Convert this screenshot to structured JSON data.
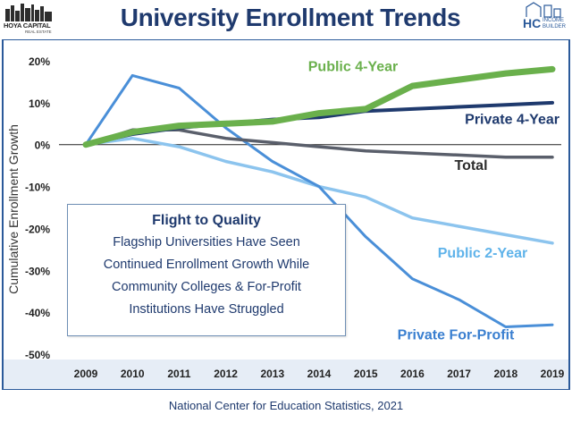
{
  "header": {
    "title": "University Enrollment Trends",
    "logo_left_text": "HOYA CAPITAL",
    "logo_left_sub": "REAL ESTATE",
    "logo_right_text": "HC",
    "logo_right_sub": "INCOME BUILDER"
  },
  "callout": {
    "title": "Flight to Quality",
    "lines": [
      "Flagship Universities Have Seen",
      "Continued Enrollment Growth While",
      "Community Colleges & For-Profit",
      "Institutions Have Struggled"
    ]
  },
  "footer": {
    "source": "National Center for Education Statistics, 2021"
  },
  "colors": {
    "title": "#1f3a6e",
    "public4": "#6ab04c",
    "private4": "#1f3a6e",
    "total": "#5a5f6b",
    "public2": "#8cc4ee",
    "privateFP": "#4a8fd8",
    "frame_border": "#2b5a9a",
    "band": "#e6edf6"
  },
  "chart_data": {
    "type": "line",
    "ylabel": "Cumulative Enrollment Growth",
    "xlabel": "",
    "x": [
      2009,
      2010,
      2011,
      2012,
      2013,
      2014,
      2015,
      2016,
      2017,
      2018,
      2019
    ],
    "x_tick_labels": [
      "2009",
      "2010",
      "2011",
      "2012",
      "2013",
      "2014",
      "2015",
      "2016",
      "2017",
      "2018",
      "2019"
    ],
    "ylim": [
      -50,
      20
    ],
    "y_ticks": [
      -50,
      -40,
      -30,
      -20,
      -10,
      0,
      10,
      20
    ],
    "y_tick_labels": [
      "-50%",
      "-40%",
      "-30%",
      "-20%",
      "-10%",
      "0%",
      "10%",
      "20%"
    ],
    "grid": false,
    "series": [
      {
        "name": "Public 4-Year",
        "key": "public4",
        "values": [
          0,
          3,
          4.5,
          5,
          5.5,
          7.5,
          8.5,
          14,
          15.5,
          17,
          18
        ]
      },
      {
        "name": "Private 4-Year",
        "key": "private4",
        "values": [
          0,
          2.5,
          4,
          5,
          6,
          6.5,
          8,
          8.5,
          9,
          9.5,
          10
        ]
      },
      {
        "name": "Total",
        "key": "total",
        "values": [
          0,
          3.5,
          3.5,
          1.5,
          0.5,
          -0.5,
          -1.5,
          -2,
          -2.5,
          -3,
          -3
        ]
      },
      {
        "name": "Public 2-Year",
        "key": "public2",
        "values": [
          0,
          1.5,
          -0.5,
          -4,
          -6.5,
          -10,
          -12.5,
          -17.5,
          -19.5,
          -21.5,
          -23.5
        ]
      },
      {
        "name": "Private For-Profit",
        "key": "privateFP",
        "values": [
          0,
          16.5,
          13.5,
          4,
          -4,
          -10,
          -22,
          -32,
          -37,
          -43.5,
          -43
        ]
      }
    ]
  }
}
